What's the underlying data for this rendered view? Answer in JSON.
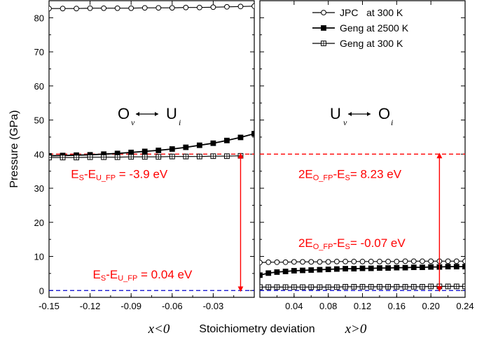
{
  "chart_data": {
    "type": "line",
    "ylabel": "Pressure (GPa)",
    "xlabel": "Stoichiometry deviation",
    "xlabel_left": "x<0",
    "xlabel_right": "x>0",
    "ylim": [
      -2,
      85
    ],
    "yticks": [
      0,
      10,
      20,
      30,
      40,
      50,
      60,
      70,
      80
    ],
    "panels": [
      {
        "name": "left",
        "xlim": [
          -0.15,
          0.0
        ],
        "xticks": [
          "-0.15",
          "-0.12",
          "-0.09",
          "-0.06",
          "-0.03"
        ],
        "xtick_values": [
          -0.15,
          -0.12,
          -0.09,
          -0.06,
          -0.03
        ],
        "transition": {
          "a": "O",
          "a_sub": "v",
          "b": "U",
          "b_sub": "i"
        },
        "series": [
          {
            "name": "JPC at 300 K",
            "marker": "open-circle",
            "x": [
              -0.15,
              -0.14,
              -0.13,
              -0.12,
              -0.11,
              -0.1,
              -0.09,
              -0.08,
              -0.07,
              -0.06,
              -0.05,
              -0.04,
              -0.03,
              -0.02,
              -0.01,
              0.0
            ],
            "y": [
              82.7,
              82.7,
              82.7,
              82.8,
              82.8,
              82.8,
              82.8,
              82.9,
              82.9,
              82.9,
              83.0,
              83.0,
              83.1,
              83.2,
              83.3,
              83.4
            ]
          },
          {
            "name": "Geng at 2500 K",
            "marker": "filled-square",
            "x": [
              -0.15,
              -0.14,
              -0.13,
              -0.12,
              -0.11,
              -0.1,
              -0.09,
              -0.08,
              -0.07,
              -0.06,
              -0.05,
              -0.04,
              -0.03,
              -0.02,
              -0.01,
              0.0
            ],
            "y": [
              39.5,
              39.6,
              39.7,
              39.8,
              40.0,
              40.2,
              40.5,
              40.8,
              41.1,
              41.5,
              42.0,
              42.6,
              43.2,
              44.0,
              44.9,
              46.0
            ]
          },
          {
            "name": "Geng at 300 K",
            "marker": "crossed-square",
            "x": [
              -0.15,
              -0.14,
              -0.13,
              -0.12,
              -0.11,
              -0.1,
              -0.09,
              -0.08,
              -0.07,
              -0.06,
              -0.05,
              -0.04,
              -0.03,
              -0.02,
              -0.01
            ],
            "y": [
              39.0,
              39.0,
              39.0,
              39.1,
              39.1,
              39.1,
              39.2,
              39.2,
              39.2,
              39.3,
              39.3,
              39.3,
              39.4,
              39.4,
              39.5
            ]
          }
        ],
        "hlines": [
          {
            "y": 40.0,
            "color": "#ff0000",
            "style": "dashed"
          },
          {
            "y": 0.0,
            "color": "#0000cc",
            "style": "dashed"
          }
        ],
        "arrow": {
          "x": -0.01,
          "y1": 0.0,
          "y2": 40.0
        },
        "annotations": [
          {
            "main": "E",
            "sub": "S",
            "mid": "-E",
            "sub2": "U_FP",
            "tail": " = -3.9 eV",
            "x": -0.134,
            "y": 33.0
          },
          {
            "main": "E",
            "sub": "S",
            "mid": "-E",
            "sub2": "U_FP",
            "tail": " = 0.04 eV",
            "x": -0.118,
            "y": 3.5
          }
        ]
      },
      {
        "name": "right",
        "xlim": [
          0.0,
          0.24
        ],
        "xticks": [
          "0.04",
          "0.08",
          "0.12",
          "0.16",
          "0.20",
          "0.24"
        ],
        "xtick_values": [
          0.04,
          0.08,
          0.12,
          0.16,
          0.2,
          0.24
        ],
        "transition": {
          "a": "U",
          "a_sub": "v",
          "b": "O",
          "b_sub": "i"
        },
        "series": [
          {
            "name": "JPC at 300 K",
            "marker": "open-circle",
            "x": [
              0.0,
              0.01,
              0.02,
              0.03,
              0.04,
              0.05,
              0.06,
              0.07,
              0.08,
              0.09,
              0.1,
              0.11,
              0.12,
              0.13,
              0.14,
              0.15,
              0.16,
              0.17,
              0.18,
              0.19,
              0.2,
              0.21,
              0.22,
              0.23,
              0.24
            ],
            "y": [
              8.2,
              8.3,
              8.3,
              8.3,
              8.4,
              8.4,
              8.4,
              8.4,
              8.4,
              8.5,
              8.5,
              8.5,
              8.5,
              8.5,
              8.5,
              8.5,
              8.5,
              8.6,
              8.6,
              8.6,
              8.6,
              8.6,
              8.6,
              8.6,
              8.6
            ]
          },
          {
            "name": "Geng at 2500 K",
            "marker": "filled-square",
            "x": [
              0.0,
              0.01,
              0.02,
              0.03,
              0.04,
              0.05,
              0.06,
              0.07,
              0.08,
              0.09,
              0.1,
              0.11,
              0.12,
              0.13,
              0.14,
              0.15,
              0.16,
              0.17,
              0.18,
              0.19,
              0.2,
              0.21,
              0.22,
              0.23,
              0.24
            ],
            "y": [
              4.5,
              5.1,
              5.4,
              5.6,
              5.8,
              5.9,
              6.0,
              6.1,
              6.2,
              6.3,
              6.4,
              6.4,
              6.5,
              6.5,
              6.6,
              6.6,
              6.7,
              6.7,
              6.8,
              6.8,
              6.9,
              6.9,
              7.0,
              7.0,
              7.0
            ]
          },
          {
            "name": "Geng at 300 K",
            "marker": "crossed-square",
            "x": [
              0.0,
              0.01,
              0.02,
              0.03,
              0.04,
              0.05,
              0.06,
              0.07,
              0.08,
              0.09,
              0.1,
              0.11,
              0.12,
              0.13,
              0.14,
              0.15,
              0.16,
              0.17,
              0.18,
              0.19,
              0.2,
              0.21,
              0.22,
              0.23,
              0.24
            ],
            "y": [
              1.0,
              1.0,
              1.0,
              1.0,
              1.0,
              1.0,
              1.0,
              1.0,
              1.0,
              1.0,
              1.1,
              1.1,
              1.1,
              1.1,
              1.1,
              1.1,
              1.1,
              1.1,
              1.1,
              1.1,
              1.2,
              1.2,
              1.2,
              1.2,
              1.2
            ]
          }
        ],
        "hlines": [
          {
            "y": 40.0,
            "color": "#ff0000",
            "style": "dashed"
          },
          {
            "y": 0.0,
            "color": "#0000cc",
            "style": "dashed"
          }
        ],
        "arrow": {
          "x": 0.21,
          "y1": 0.0,
          "y2": 40.0
        },
        "annotations": [
          {
            "main": "2E",
            "sub": "O_FP",
            "mid": "-E",
            "sub2": "S",
            "tail": "= 8.23 eV",
            "x": 0.045,
            "y": 33.0
          },
          {
            "main": "2E",
            "sub": "O_FP",
            "mid": "-E",
            "sub2": "S",
            "tail": "= -0.07 eV",
            "x": 0.045,
            "y": 12.8
          }
        ]
      }
    ],
    "legend": {
      "placement": "top-right",
      "entries": [
        {
          "label": "JPC   at 300 K",
          "marker": "open-circle"
        },
        {
          "label": "Geng at 2500 K",
          "marker": "filled-square"
        },
        {
          "label": "Geng at 300 K",
          "marker": "crossed-square"
        }
      ]
    }
  }
}
